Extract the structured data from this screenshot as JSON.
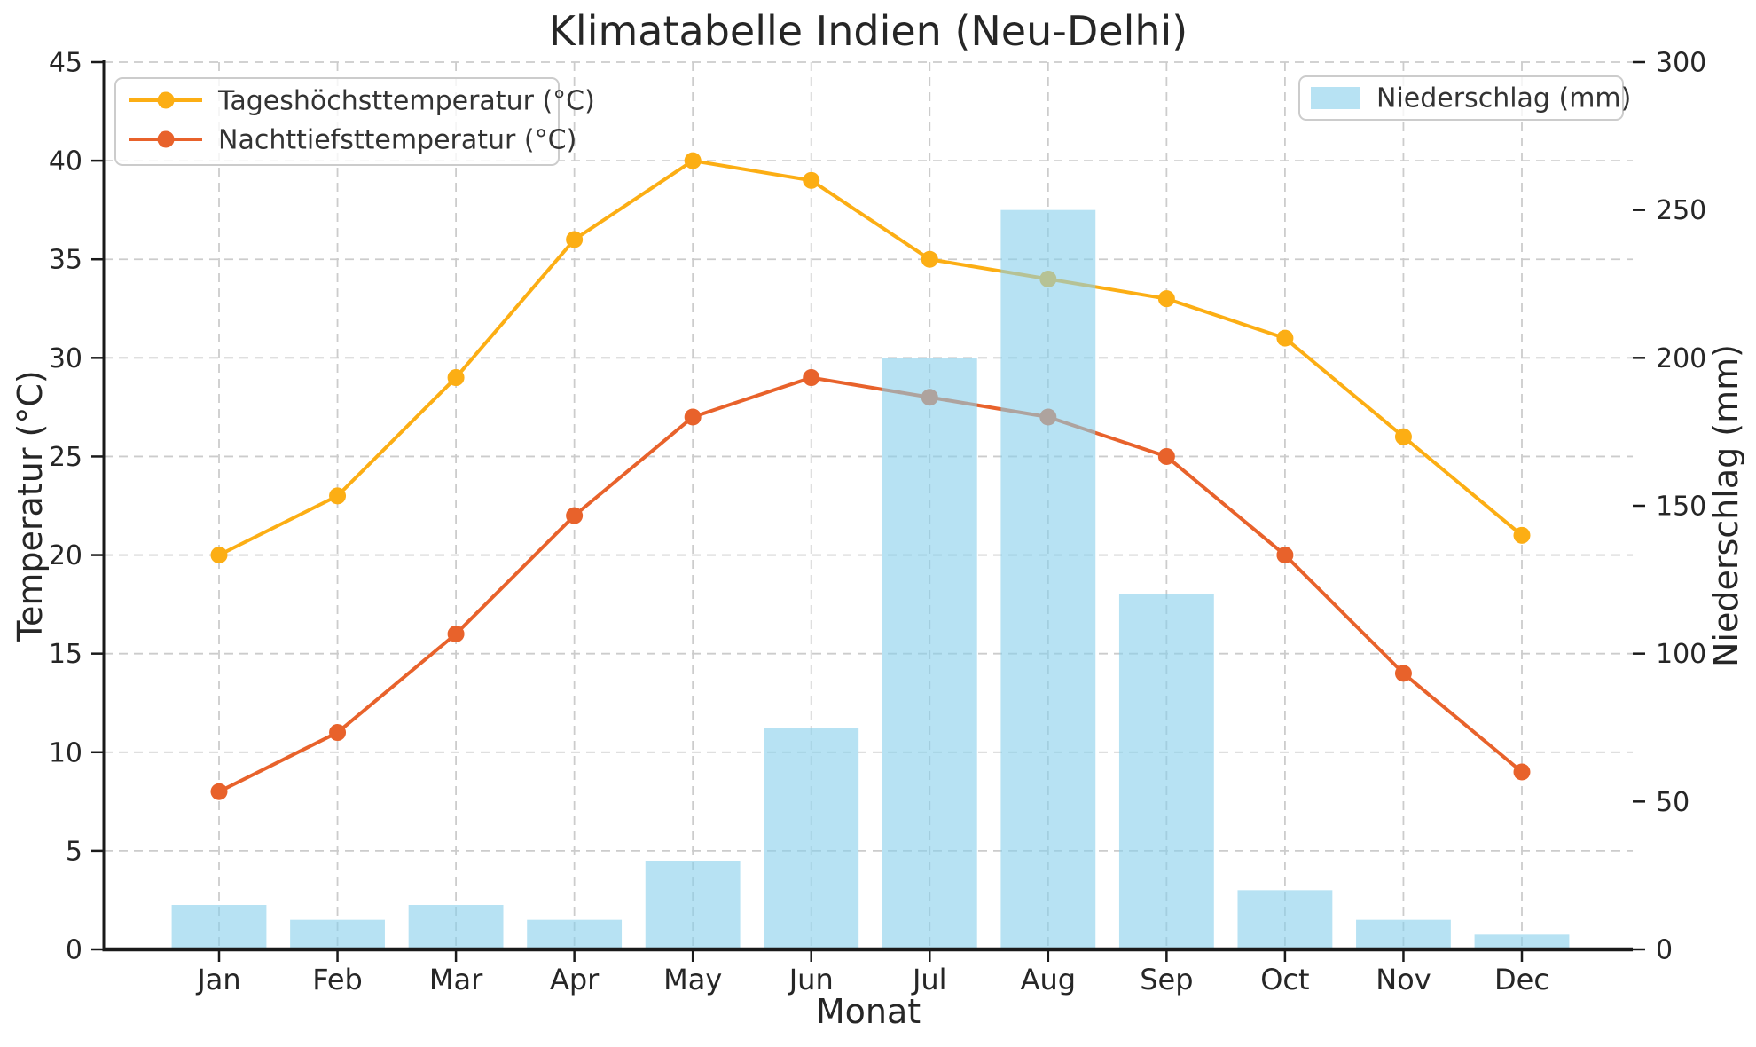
{
  "title": "Klimatabelle Indien (Neu-Delhi)",
  "axes": {
    "x_label": "Monat",
    "y_left_label": "Temperatur (°C)",
    "y_right_label": "Niederschlag (mm)"
  },
  "colors": {
    "day_line": "#FCAE14",
    "night_line": "#E8622B",
    "precip_bar": "#87CEEB",
    "precip_bar_opacity": 0.6,
    "grid": "#cccccc",
    "spine": "#1a1a1a",
    "text": "#262626",
    "legend_border": "#cccccc",
    "legend_bg": "rgba(255,255,255,0.8)"
  },
  "chart_data": {
    "type": "line+bar",
    "title": "Klimatabelle Indien (Neu-Delhi)",
    "xlabel": "Monat",
    "ylabel_left": "Temperatur (°C)",
    "ylabel_right": "Niederschlag (mm)",
    "categories": [
      "Jan",
      "Feb",
      "Mar",
      "Apr",
      "May",
      "Jun",
      "Jul",
      "Aug",
      "Sep",
      "Oct",
      "Nov",
      "Dec"
    ],
    "series": [
      {
        "name": "Tageshöchsttemperatur (°C)",
        "type": "line",
        "axis": "left",
        "values": [
          20,
          23,
          29,
          36,
          40,
          39,
          35,
          34,
          33,
          31,
          26,
          21
        ]
      },
      {
        "name": "Nachttiefsttemperatur (°C)",
        "type": "line",
        "axis": "left",
        "values": [
          8,
          11,
          16,
          22,
          27,
          29,
          28,
          27,
          25,
          20,
          14,
          9
        ]
      },
      {
        "name": "Niederschlag (mm)",
        "type": "bar",
        "axis": "right",
        "values": [
          15,
          10,
          15,
          10,
          30,
          75,
          200,
          250,
          120,
          20,
          10,
          5
        ]
      }
    ],
    "y_left_range": [
      0,
      45
    ],
    "y_left_ticks": [
      0,
      5,
      10,
      15,
      20,
      25,
      30,
      35,
      40,
      45
    ],
    "y_right_range": [
      0,
      300
    ],
    "y_right_ticks": [
      0,
      50,
      100,
      150,
      200,
      250,
      300
    ],
    "grid": {
      "visible": true,
      "style": "dashed"
    },
    "legend_positions": {
      "temperature_legend": "upper left",
      "precipitation_legend": "upper right"
    }
  }
}
